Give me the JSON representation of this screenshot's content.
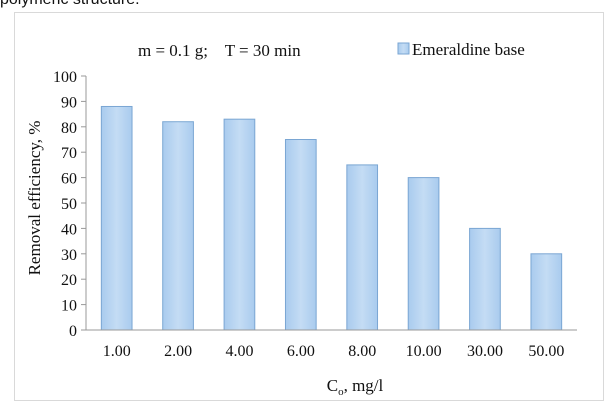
{
  "top_text": "polymeric structure.",
  "chart_data": {
    "type": "bar",
    "annotation": "m = 0.1 g;    T = 30 min",
    "categories": [
      "1.00",
      "2.00",
      "4.00",
      "6.00",
      "8.00",
      "10.00",
      "30.00",
      "50.00"
    ],
    "series": [
      {
        "name": "Emeraldine base",
        "values": [
          88,
          82,
          83,
          75,
          65,
          60,
          40,
          30
        ]
      }
    ],
    "xlabel": "C",
    "xlabel_sub": "o",
    "xlabel_unit": ", mg/l",
    "ylabel": "Removal efficiency, %",
    "ylim": [
      0,
      100
    ],
    "yticks": [
      "0",
      "10",
      "20",
      "30",
      "40",
      "50",
      "60",
      "70",
      "80",
      "90",
      "100"
    ],
    "grid": false,
    "legend_position": "top-right",
    "bar_color": "#9dc3e6",
    "bar_edge_color": "#7aa6d3"
  }
}
